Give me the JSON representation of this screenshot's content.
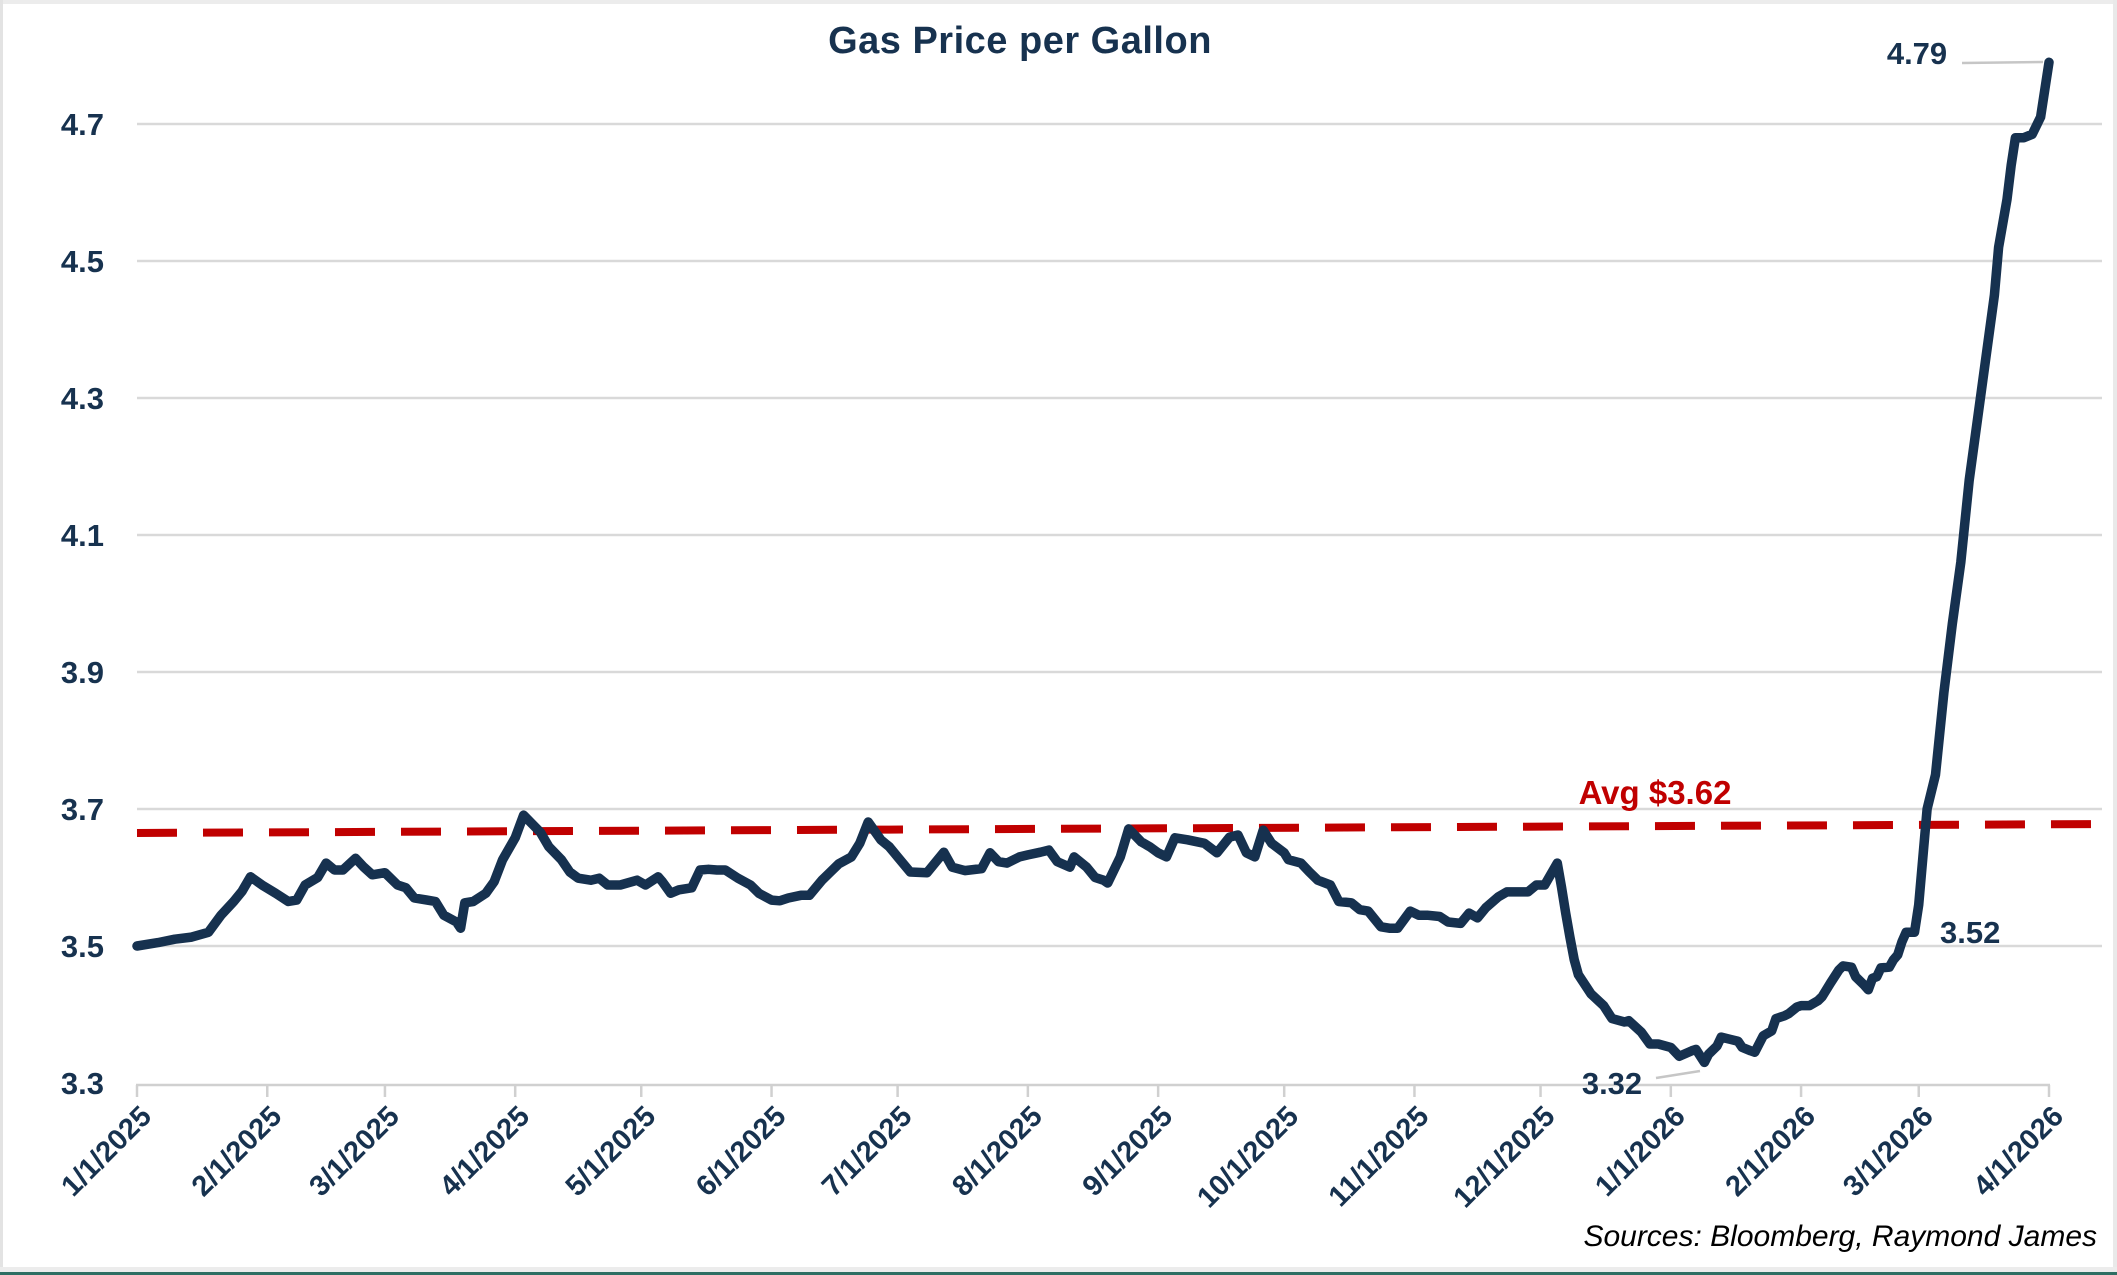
{
  "title": "Gas Price per Gallon",
  "source_note": "Sources: Bloomberg, Raymond James",
  "colors": {
    "line": "#16314f",
    "text": "#17324f",
    "average_line": "#c00000",
    "gridline": "#d9d9d9",
    "axis": "#d0d0d0",
    "leader_line": "#c6c6c6",
    "bottom_border": "#2e6e63"
  },
  "chart_data": {
    "type": "line",
    "title": "Gas Price per Gallon",
    "xlabel": "",
    "ylabel": "",
    "ylim": [
      3.3,
      4.8
    ],
    "grid": "horizontal",
    "legend_position": "none",
    "y_tick_labels": [
      "3.3",
      "3.5",
      "3.7",
      "3.9",
      "4.1",
      "4.3",
      "4.5",
      "4.7"
    ],
    "x_tick_labels": [
      "1/1/2025",
      "2/1/2025",
      "3/1/2025",
      "4/1/2025",
      "5/1/2025",
      "6/1/2025",
      "7/1/2025",
      "8/1/2025",
      "9/1/2025",
      "10/1/2025",
      "11/1/2025",
      "12/1/2025",
      "1/1/2026",
      "2/1/2026",
      "3/1/2026",
      "4/1/2026"
    ],
    "average_line": {
      "label": "Avg $3.62",
      "value": 3.62,
      "style": "dashed-red",
      "drawn_from": 3.665,
      "drawn_to": 3.678
    },
    "annotations": {
      "peak": "4.79",
      "pre_spike": "3.52",
      "min": "3.32"
    },
    "series": [
      {
        "name": "Gas Price per Gallon",
        "points": [
          [
            "1/1/2025",
            3.5
          ],
          [
            "1/6/2025",
            3.505
          ],
          [
            "1/10/2025",
            3.51
          ],
          [
            "1/14/2025",
            3.513
          ],
          [
            "1/18/2025",
            3.52
          ],
          [
            "1/21/2025",
            3.545
          ],
          [
            "1/24/2025",
            3.565
          ],
          [
            "1/26/2025",
            3.58
          ],
          [
            "1/28/2025",
            3.601
          ],
          [
            "1/31/2025",
            3.588
          ],
          [
            "2/3/2025",
            3.577
          ],
          [
            "2/6/2025",
            3.565
          ],
          [
            "2/8/2025",
            3.567
          ],
          [
            "2/10/2025",
            3.589
          ],
          [
            "2/13/2025",
            3.6
          ],
          [
            "2/15/2025",
            3.621
          ],
          [
            "2/17/2025",
            3.611
          ],
          [
            "2/19/2025",
            3.611
          ],
          [
            "2/22/2025",
            3.628
          ],
          [
            "2/24/2025",
            3.615
          ],
          [
            "2/26/2025",
            3.604
          ],
          [
            "3/1/2025",
            3.607
          ],
          [
            "3/4/2025",
            3.589
          ],
          [
            "3/6/2025",
            3.585
          ],
          [
            "3/8/2025",
            3.57
          ],
          [
            "3/11/2025",
            3.567
          ],
          [
            "3/13/2025",
            3.565
          ],
          [
            "3/15/2025",
            3.545
          ],
          [
            "3/18/2025",
            3.535
          ],
          [
            "3/19/2025",
            3.526
          ],
          [
            "3/20/2025",
            3.563
          ],
          [
            "3/22/2025",
            3.565
          ],
          [
            "3/25/2025",
            3.577
          ],
          [
            "3/27/2025",
            3.594
          ],
          [
            "3/29/2025",
            3.626
          ],
          [
            "4/1/2025",
            3.658
          ],
          [
            "4/3/2025",
            3.691
          ],
          [
            "4/7/2025",
            3.666
          ],
          [
            "4/9/2025",
            3.645
          ],
          [
            "4/12/2025",
            3.626
          ],
          [
            "4/14/2025",
            3.608
          ],
          [
            "4/16/2025",
            3.599
          ],
          [
            "4/19/2025",
            3.596
          ],
          [
            "4/21/2025",
            3.599
          ],
          [
            "4/23/2025",
            3.589
          ],
          [
            "4/26/2025",
            3.589
          ],
          [
            "4/30/2025",
            3.596
          ],
          [
            "5/2/2025",
            3.589
          ],
          [
            "5/5/2025",
            3.601
          ],
          [
            "5/6/2025",
            3.594
          ],
          [
            "5/8/2025",
            3.577
          ],
          [
            "5/10/2025",
            3.582
          ],
          [
            "5/13/2025",
            3.585
          ],
          [
            "5/15/2025",
            3.611
          ],
          [
            "5/17/2025",
            3.612
          ],
          [
            "5/19/2025",
            3.611
          ],
          [
            "5/21/2025",
            3.611
          ],
          [
            "5/24/2025",
            3.599
          ],
          [
            "5/27/2025",
            3.589
          ],
          [
            "5/29/2025",
            3.577
          ],
          [
            "6/1/2025",
            3.567
          ],
          [
            "6/3/2025",
            3.566
          ],
          [
            "6/5/2025",
            3.57
          ],
          [
            "6/8/2025",
            3.574
          ],
          [
            "6/10/2025",
            3.574
          ],
          [
            "6/13/2025",
            3.596
          ],
          [
            "6/15/2025",
            3.608
          ],
          [
            "6/17/2025",
            3.62
          ],
          [
            "6/20/2025",
            3.63
          ],
          [
            "6/22/2025",
            3.65
          ],
          [
            "6/24/2025",
            3.681
          ],
          [
            "6/27/2025",
            3.655
          ],
          [
            "6/29/2025",
            3.645
          ],
          [
            "7/1/2025",
            3.63
          ],
          [
            "7/4/2025",
            3.608
          ],
          [
            "7/8/2025",
            3.607
          ],
          [
            "7/12/2025",
            3.637
          ],
          [
            "7/14/2025",
            3.615
          ],
          [
            "7/17/2025",
            3.61
          ],
          [
            "7/21/2025",
            3.613
          ],
          [
            "7/23/2025",
            3.636
          ],
          [
            "7/25/2025",
            3.623
          ],
          [
            "7/27/2025",
            3.621
          ],
          [
            "7/30/2025",
            3.63
          ],
          [
            "8/1/2025",
            3.633
          ],
          [
            "8/4/2025",
            3.637
          ],
          [
            "8/6/2025",
            3.64
          ],
          [
            "8/8/2025",
            3.623
          ],
          [
            "8/11/2025",
            3.615
          ],
          [
            "8/12/2025",
            3.63
          ],
          [
            "8/15/2025",
            3.615
          ],
          [
            "8/17/2025",
            3.6
          ],
          [
            "8/19/2025",
            3.596
          ],
          [
            "8/20/2025",
            3.592
          ],
          [
            "8/23/2025",
            3.63
          ],
          [
            "8/25/2025",
            3.671
          ],
          [
            "8/28/2025",
            3.652
          ],
          [
            "8/30/2025",
            3.645
          ],
          [
            "9/1/2025",
            3.636
          ],
          [
            "9/3/2025",
            3.63
          ],
          [
            "9/5/2025",
            3.658
          ],
          [
            "9/8/2025",
            3.655
          ],
          [
            "9/12/2025",
            3.65
          ],
          [
            "9/15/2025",
            3.636
          ],
          [
            "9/18/2025",
            3.659
          ],
          [
            "9/20/2025",
            3.662
          ],
          [
            "9/22/2025",
            3.636
          ],
          [
            "9/24/2025",
            3.63
          ],
          [
            "9/26/2025",
            3.669
          ],
          [
            "9/28/2025",
            3.65
          ],
          [
            "10/1/2025",
            3.636
          ],
          [
            "10/2/2025",
            3.626
          ],
          [
            "10/5/2025",
            3.621
          ],
          [
            "10/7/2025",
            3.608
          ],
          [
            "10/9/2025",
            3.596
          ],
          [
            "10/12/2025",
            3.589
          ],
          [
            "10/14/2025",
            3.565
          ],
          [
            "10/17/2025",
            3.563
          ],
          [
            "10/19/2025",
            3.553
          ],
          [
            "10/21/2025",
            3.551
          ],
          [
            "10/24/2025",
            3.528
          ],
          [
            "10/26/2025",
            3.526
          ],
          [
            "10/28/2025",
            3.526
          ],
          [
            "10/31/2025",
            3.551
          ],
          [
            "11/2/2025",
            3.545
          ],
          [
            "11/4/2025",
            3.545
          ],
          [
            "11/7/2025",
            3.543
          ],
          [
            "11/9/2025",
            3.535
          ],
          [
            "11/12/2025",
            3.533
          ],
          [
            "11/14/2025",
            3.548
          ],
          [
            "11/16/2025",
            3.541
          ],
          [
            "11/18/2025",
            3.556
          ],
          [
            "11/21/2025",
            3.572
          ],
          [
            "11/23/2025",
            3.579
          ],
          [
            "11/25/2025",
            3.579
          ],
          [
            "11/28/2025",
            3.579
          ],
          [
            "11/30/2025",
            3.589
          ],
          [
            "12/2/2025",
            3.589
          ],
          [
            "12/5/2025",
            3.621
          ],
          [
            "12/6/2025",
            3.586
          ],
          [
            "12/7/2025",
            3.548
          ],
          [
            "12/8/2025",
            3.513
          ],
          [
            "12/9/2025",
            3.48
          ],
          [
            "12/10/2025",
            3.458
          ],
          [
            "12/13/2025",
            3.43
          ],
          [
            "12/16/2025",
            3.413
          ],
          [
            "12/18/2025",
            3.394
          ],
          [
            "12/21/2025",
            3.389
          ],
          [
            "12/22/2025",
            3.391
          ],
          [
            "12/25/2025",
            3.374
          ],
          [
            "12/27/2025",
            3.357
          ],
          [
            "12/29/2025",
            3.357
          ],
          [
            "1/1/2026",
            3.352
          ],
          [
            "1/3/2026",
            3.339
          ],
          [
            "1/6/2026",
            3.347
          ],
          [
            "1/7/2026",
            3.349
          ],
          [
            "1/9/2026",
            3.33
          ],
          [
            "1/10/2026",
            3.342
          ],
          [
            "1/12/2026",
            3.354
          ],
          [
            "1/13/2026",
            3.367
          ],
          [
            "1/15/2026",
            3.364
          ],
          [
            "1/17/2026",
            3.361
          ],
          [
            "1/18/2026",
            3.352
          ],
          [
            "1/20/2026",
            3.347
          ],
          [
            "1/21/2026",
            3.345
          ],
          [
            "1/23/2026",
            3.369
          ],
          [
            "1/25/2026",
            3.376
          ],
          [
            "1/26/2026",
            3.394
          ],
          [
            "1/28/2026",
            3.398
          ],
          [
            "1/29/2026",
            3.401
          ],
          [
            "1/31/2026",
            3.411
          ],
          [
            "2/1/2026",
            3.413
          ],
          [
            "2/3/2026",
            3.413
          ],
          [
            "2/5/2026",
            3.42
          ],
          [
            "2/6/2026",
            3.426
          ],
          [
            "2/8/2026",
            3.446
          ],
          [
            "2/10/2026",
            3.465
          ],
          [
            "2/11/2026",
            3.471
          ],
          [
            "2/13/2026",
            3.469
          ],
          [
            "2/14/2026",
            3.455
          ],
          [
            "2/16/2026",
            3.443
          ],
          [
            "2/17/2026",
            3.436
          ],
          [
            "2/18/2026",
            3.453
          ],
          [
            "2/19/2026",
            3.455
          ],
          [
            "2/20/2026",
            3.468
          ],
          [
            "2/22/2026",
            3.469
          ],
          [
            "2/23/2026",
            3.48
          ],
          [
            "2/24/2026",
            3.487
          ],
          [
            "2/25/2026",
            3.506
          ],
          [
            "2/26/2026",
            3.52
          ],
          [
            "2/28/2026",
            3.52
          ],
          [
            "3/1/2026",
            3.56
          ],
          [
            "3/2/2026",
            3.63
          ],
          [
            "3/3/2026",
            3.7
          ],
          [
            "3/5/2026",
            3.75
          ],
          [
            "3/7/2026",
            3.87
          ],
          [
            "3/9/2026",
            3.97
          ],
          [
            "3/11/2026",
            4.06
          ],
          [
            "3/13/2026",
            4.18
          ],
          [
            "3/15/2026",
            4.27
          ],
          [
            "3/17/2026",
            4.36
          ],
          [
            "3/19/2026",
            4.45
          ],
          [
            "3/20/2026",
            4.52
          ],
          [
            "3/22/2026",
            4.59
          ],
          [
            "3/23/2026",
            4.64
          ],
          [
            "3/24/2026",
            4.68
          ],
          [
            "3/26/2026",
            4.68
          ],
          [
            "3/28/2026",
            4.685
          ],
          [
            "3/30/2026",
            4.71
          ],
          [
            "3/31/2026",
            4.75
          ],
          [
            "4/1/2026",
            4.79
          ]
        ]
      }
    ]
  }
}
